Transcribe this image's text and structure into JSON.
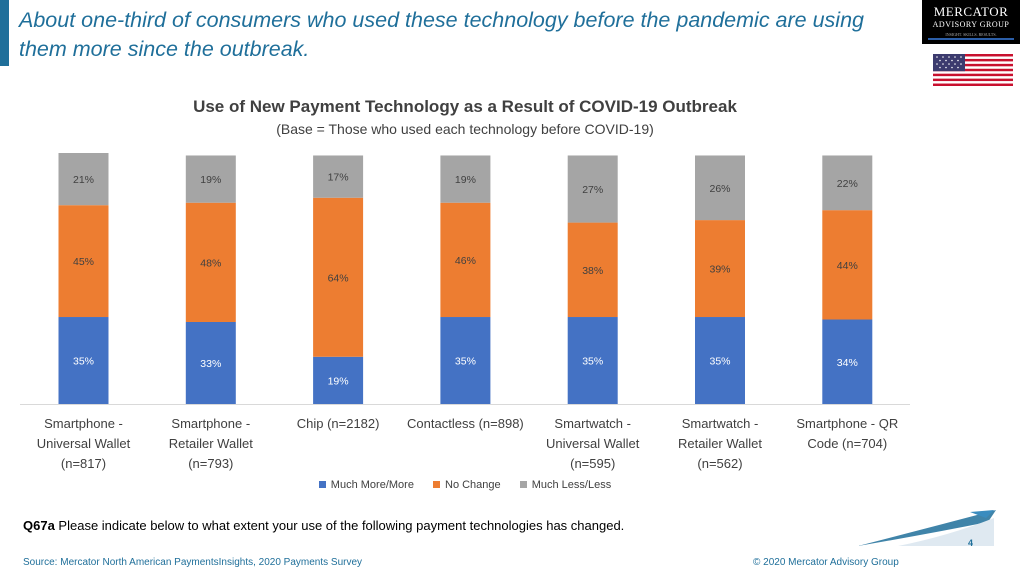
{
  "slide": {
    "title": "About one-third of consumers who used these technology before the pandemic are using them more since the outbreak.",
    "question_label": "Q67a",
    "question_text": " Please indicate below to what extent your use of the following payment technologies has changed.",
    "source": "Source: Mercator North American PaymentsInsights, 2020 Payments Survey",
    "copyright": "© 2020 Mercator Advisory Group",
    "page_number": "4"
  },
  "logo": {
    "line1": "MERCATOR",
    "line2": "ADVISORY GROUP",
    "line3": "INSIGHT. SKILLS. RESULTS."
  },
  "chart_data": {
    "type": "bar",
    "stacked": true,
    "title": "Use of New Payment Technology as a Result of COVID-19 Outbreak",
    "subtitle": "(Base = Those who used each technology before COVID-19)",
    "categories": [
      [
        "Smartphone -",
        "Universal Wallet",
        "(n=817)"
      ],
      [
        "Smartphone -",
        "Retailer Wallet",
        "(n=793)"
      ],
      [
        "Chip (n=2182)"
      ],
      [
        "Contactless (n=898)"
      ],
      [
        "Smartwatch -",
        "Universal Wallet",
        "(n=595)"
      ],
      [
        "Smartwatch -",
        "Retailer Wallet",
        "(n=562)"
      ],
      [
        "Smartphone - QR",
        "Code (n=704)"
      ]
    ],
    "series": [
      {
        "name": "Much More/More",
        "color": "#4472c4",
        "values": [
          35,
          33,
          19,
          35,
          35,
          35,
          34
        ],
        "labels": [
          "35%",
          "33%",
          "19%",
          "35%",
          "35%",
          "35%",
          "34%"
        ]
      },
      {
        "name": "No Change",
        "color": "#ed7d31",
        "values": [
          45,
          48,
          64,
          46,
          38,
          39,
          44
        ],
        "labels": [
          "45%",
          "48%",
          "64%",
          "46%",
          "38%",
          "39%",
          "44%"
        ]
      },
      {
        "name": "Much Less/Less",
        "color": "#a5a5a5",
        "values": [
          21,
          19,
          17,
          19,
          27,
          26,
          22
        ],
        "labels": [
          "21%",
          "19%",
          "17%",
          "19%",
          "27%",
          "26%",
          "22%"
        ]
      }
    ],
    "ylim": [
      0,
      101
    ],
    "grid": false,
    "legend_position": "bottom"
  }
}
